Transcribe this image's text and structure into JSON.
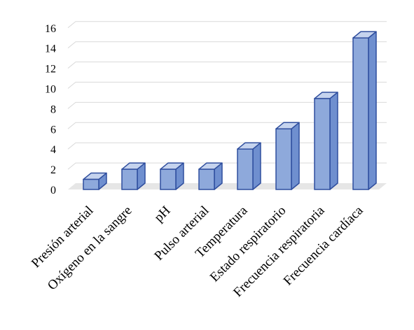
{
  "chart_data": {
    "type": "bar",
    "style": "3d-column",
    "categories": [
      "Presión arterial",
      "Oxígeno en la sangre",
      "pH",
      "Pulso arterial",
      "Temperatura",
      "Estado respiratorio",
      "Frecuencia respiratoria",
      "Frecuencia cardíaca"
    ],
    "values": [
      1,
      2,
      2,
      2,
      4,
      6,
      9,
      15
    ],
    "ylim": [
      0,
      16
    ],
    "yticks": [
      "0",
      "2",
      "4",
      "6",
      "8",
      "10",
      "12",
      "14",
      "16"
    ],
    "grid": true,
    "legend": "none",
    "colors": {
      "bar_front": "#8EA9DB",
      "bar_side": "#6F8FCF",
      "bar_top": "#C5D3EE",
      "bar_edge": "#2F4E9E",
      "grid": "#D9D9D9",
      "floor": "#E6E6E6"
    }
  }
}
